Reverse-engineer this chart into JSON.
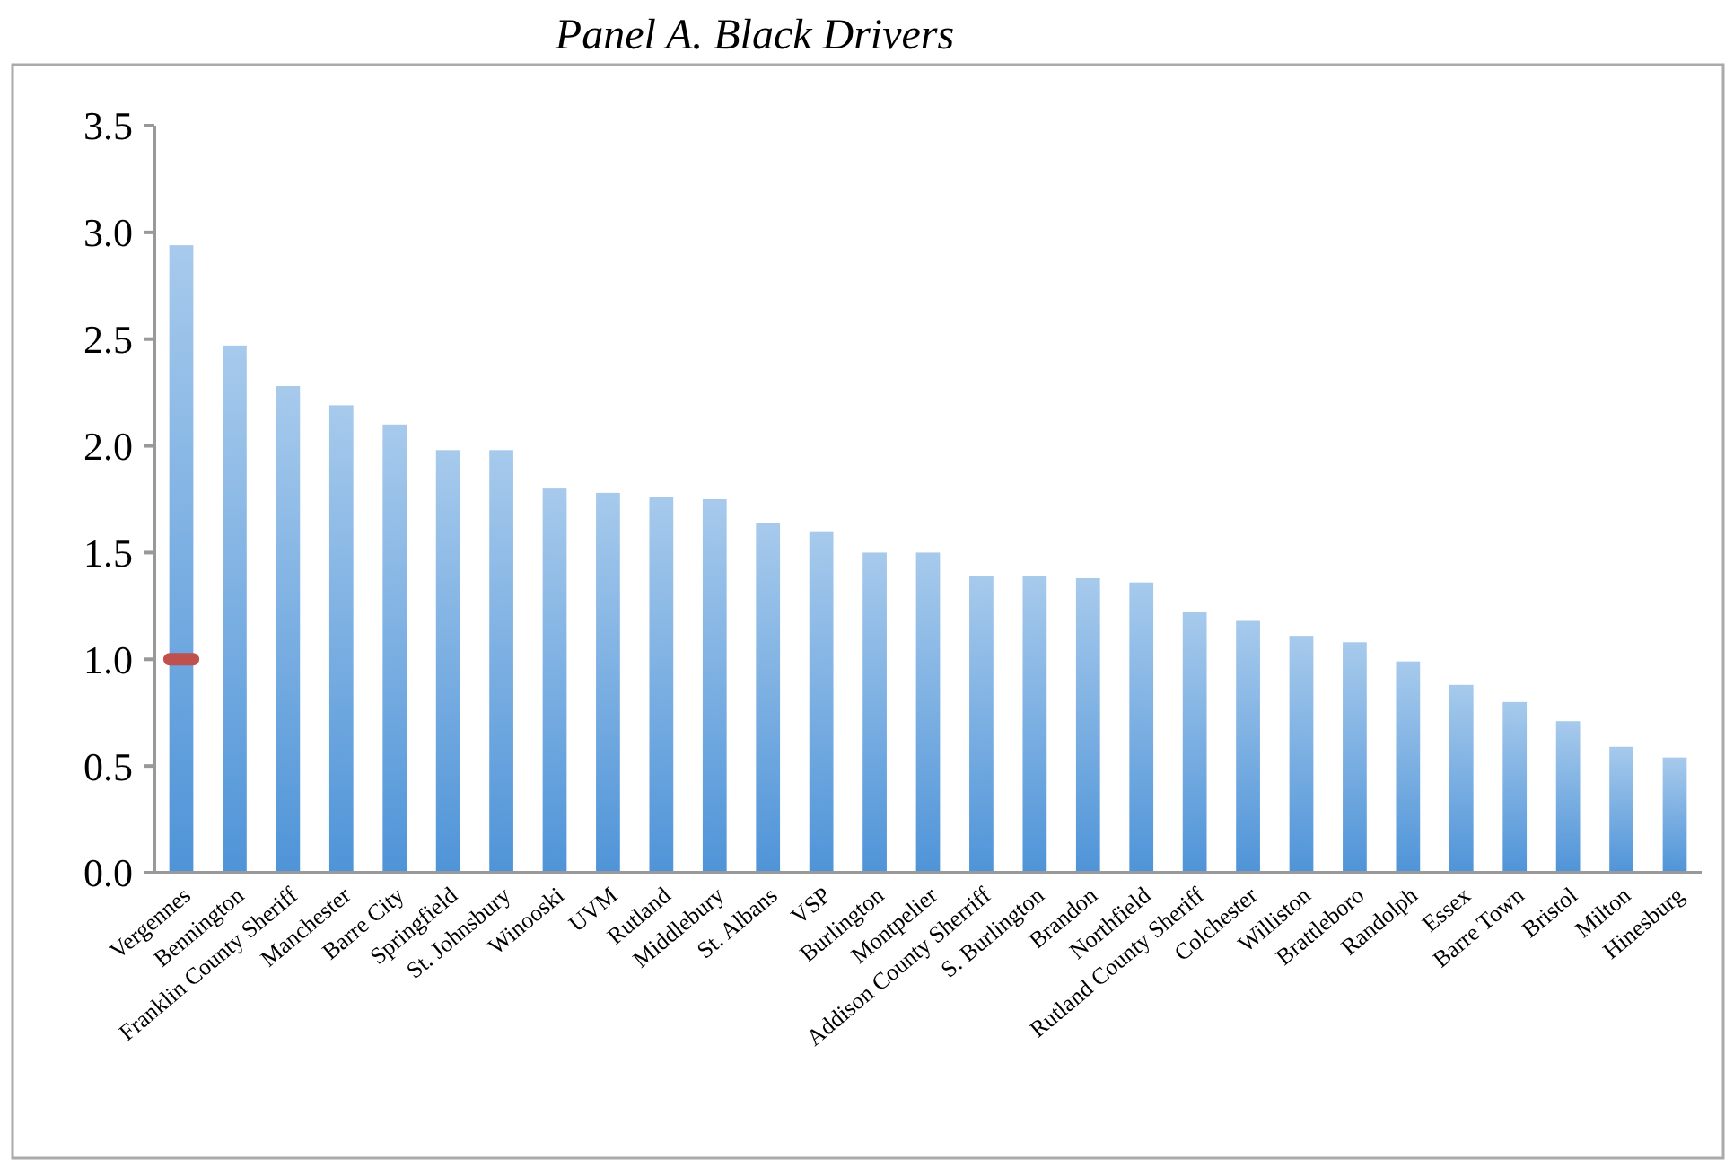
{
  "chart_data": {
    "type": "bar",
    "title": "Panel A. Black Drivers",
    "categories": [
      "Vergennes",
      "Bennington",
      "Franklin County Sheriff",
      "Manchester",
      "Barre City",
      "Springfield",
      "St. Johnsbury",
      "Winooski",
      "UVM",
      "Rutland",
      "Middlebury",
      "St. Albans",
      "VSP",
      "Burlington",
      "Montpelier",
      "Addison County Sherriff",
      "S. Burlington",
      "Brandon",
      "Northfield",
      "Rutland County Sheriff",
      "Colchester",
      "Williston",
      "Brattleboro",
      "Randolph",
      "Essex",
      "Barre Town",
      "Bristol",
      "Milton",
      "Hinesburg"
    ],
    "series": [
      {
        "color": "#4f94d8",
        "values": [
          2.94,
          2.47,
          2.28,
          2.19,
          2.1,
          1.98,
          1.98,
          1.8,
          1.78,
          1.76,
          1.75,
          1.64,
          1.6,
          1.5,
          1.5,
          1.39,
          1.39,
          1.38,
          1.36,
          1.22,
          1.18,
          1.11,
          1.08,
          0.99,
          0.88,
          0.8,
          0.71,
          0.59,
          0.54
        ]
      },
      {
        "type": "scatter",
        "color": "#c0504d",
        "marker": "square",
        "values": [
          1.0,
          null,
          null,
          null,
          null,
          null,
          null,
          null,
          null,
          null,
          null,
          null,
          null,
          null,
          null,
          null,
          null,
          null,
          null,
          null,
          null,
          null,
          null,
          null,
          null,
          null,
          null,
          null,
          null
        ]
      }
    ],
    "ylim": [
      0,
      3.5
    ],
    "yticks": [
      {
        "value": 0,
        "label": "0.0"
      },
      {
        "value": 0.5,
        "label": "0.5"
      },
      {
        "value": 1,
        "label": "1.0"
      },
      {
        "value": 1.5,
        "label": "1.5"
      },
      {
        "value": 2,
        "label": "2.0"
      },
      {
        "value": 2.5,
        "label": "2.5"
      },
      {
        "value": 3,
        "label": "3.0"
      },
      {
        "value": 3.5,
        "label": "3.5"
      }
    ],
    "grid": false
  }
}
